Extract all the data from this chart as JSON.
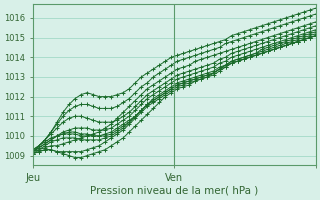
{
  "title": "",
  "xlabel": "Pression niveau de la mer( hPa )",
  "ylabel": "",
  "bg_color": "#d8f0e8",
  "plot_bg_color": "#d8f0e8",
  "grid_color": "#aaddcc",
  "line_color": "#1a6b2a",
  "axis_color": "#5a9a6a",
  "ylim": [
    1008.5,
    1016.7
  ],
  "xlim": [
    0,
    48
  ],
  "yticks": [
    1009,
    1010,
    1011,
    1012,
    1013,
    1014,
    1015,
    1016
  ],
  "xticks": [
    0,
    24,
    48
  ],
  "xticklabels": [
    "Jeu",
    "Ven",
    ""
  ],
  "vline_x": 24,
  "series": [
    [
      1009.2,
      1009.3,
      1009.4,
      1009.5,
      1009.5,
      1009.6,
      1009.7,
      1009.8,
      1009.9,
      1010.0,
      1010.1,
      1010.2,
      1010.4,
      1010.6,
      1010.9,
      1011.2,
      1011.5,
      1011.8,
      1012.1,
      1012.4,
      1012.6,
      1012.8,
      1013.0,
      1013.2,
      1013.4,
      1013.5,
      1013.6,
      1013.8,
      1013.9,
      1014.0,
      1014.1,
      1014.2,
      1014.3,
      1014.4,
      1014.5,
      1014.6,
      1014.7,
      1014.8,
      1014.9,
      1015.0,
      1015.1,
      1015.2,
      1015.3,
      1015.4,
      1015.5,
      1015.6,
      1015.7,
      1015.8
    ],
    [
      1009.1,
      1009.2,
      1009.3,
      1009.3,
      1009.2,
      1009.1,
      1009.0,
      1008.9,
      1008.9,
      1009.0,
      1009.1,
      1009.2,
      1009.3,
      1009.5,
      1009.7,
      1009.9,
      1010.2,
      1010.5,
      1010.8,
      1011.1,
      1011.4,
      1011.7,
      1012.0,
      1012.2,
      1012.4,
      1012.5,
      1012.6,
      1012.8,
      1012.9,
      1013.0,
      1013.2,
      1013.4,
      1013.6,
      1013.8,
      1013.9,
      1014.0,
      1014.1,
      1014.2,
      1014.3,
      1014.4,
      1014.5,
      1014.6,
      1014.7,
      1014.8,
      1014.9,
      1015.0,
      1015.1,
      1015.2
    ],
    [
      1009.3,
      1009.5,
      1009.7,
      1009.9,
      1010.0,
      1010.1,
      1010.1,
      1010.1,
      1010.0,
      1010.0,
      1010.0,
      1010.0,
      1010.1,
      1010.2,
      1010.4,
      1010.6,
      1010.8,
      1011.0,
      1011.3,
      1011.6,
      1011.9,
      1012.1,
      1012.3,
      1012.5,
      1012.7,
      1012.8,
      1012.9,
      1013.0,
      1013.1,
      1013.2,
      1013.3,
      1013.5,
      1013.6,
      1013.8,
      1013.9,
      1014.0,
      1014.1,
      1014.2,
      1014.4,
      1014.5,
      1014.6,
      1014.7,
      1014.8,
      1014.9,
      1015.0,
      1015.1,
      1015.2,
      1015.3
    ],
    [
      1009.1,
      1009.2,
      1009.3,
      1009.3,
      1009.2,
      1009.2,
      1009.2,
      1009.2,
      1009.2,
      1009.3,
      1009.4,
      1009.5,
      1009.7,
      1009.9,
      1010.1,
      1010.3,
      1010.6,
      1010.9,
      1011.2,
      1011.5,
      1011.7,
      1011.9,
      1012.1,
      1012.3,
      1012.5,
      1012.6,
      1012.7,
      1012.8,
      1012.9,
      1013.0,
      1013.1,
      1013.3,
      1013.5,
      1013.7,
      1013.8,
      1013.9,
      1014.0,
      1014.1,
      1014.2,
      1014.3,
      1014.4,
      1014.5,
      1014.6,
      1014.7,
      1014.8,
      1014.9,
      1015.0,
      1015.1
    ],
    [
      1009.2,
      1009.4,
      1009.6,
      1009.8,
      1010.0,
      1010.1,
      1010.2,
      1010.2,
      1010.1,
      1010.1,
      1010.0,
      1010.0,
      1010.0,
      1010.1,
      1010.3,
      1010.5,
      1010.7,
      1011.0,
      1011.3,
      1011.6,
      1011.8,
      1012.0,
      1012.2,
      1012.4,
      1012.6,
      1012.7,
      1012.8,
      1012.9,
      1013.0,
      1013.1,
      1013.2,
      1013.4,
      1013.6,
      1013.7,
      1013.8,
      1013.9,
      1014.0,
      1014.1,
      1014.2,
      1014.3,
      1014.4,
      1014.5,
      1014.6,
      1014.7,
      1014.8,
      1014.9,
      1015.0,
      1015.1
    ],
    [
      1009.2,
      1009.4,
      1009.6,
      1009.8,
      1010.0,
      1010.2,
      1010.3,
      1010.4,
      1010.4,
      1010.4,
      1010.3,
      1010.3,
      1010.3,
      1010.4,
      1010.6,
      1010.8,
      1011.0,
      1011.3,
      1011.6,
      1011.9,
      1012.1,
      1012.3,
      1012.5,
      1012.7,
      1012.9,
      1013.0,
      1013.1,
      1013.2,
      1013.3,
      1013.4,
      1013.5,
      1013.7,
      1013.8,
      1014.0,
      1014.1,
      1014.2,
      1014.3,
      1014.4,
      1014.5,
      1014.6,
      1014.7,
      1014.8,
      1014.9,
      1015.0,
      1015.1,
      1015.2,
      1015.3,
      1015.4
    ],
    [
      1009.1,
      1009.3,
      1009.5,
      1009.7,
      1009.8,
      1009.9,
      1009.9,
      1009.9,
      1009.8,
      1009.8,
      1009.8,
      1009.8,
      1009.9,
      1010.0,
      1010.2,
      1010.4,
      1010.7,
      1011.0,
      1011.3,
      1011.6,
      1011.8,
      1012.0,
      1012.2,
      1012.4,
      1012.6,
      1012.7,
      1012.8,
      1012.9,
      1013.0,
      1013.1,
      1013.2,
      1013.4,
      1013.5,
      1013.7,
      1013.8,
      1013.9,
      1014.0,
      1014.1,
      1014.2,
      1014.3,
      1014.4,
      1014.5,
      1014.6,
      1014.7,
      1014.8,
      1014.9,
      1015.0,
      1015.1
    ],
    [
      1009.3,
      1009.5,
      1009.8,
      1010.1,
      1010.4,
      1010.7,
      1010.9,
      1011.0,
      1011.0,
      1010.9,
      1010.8,
      1010.7,
      1010.7,
      1010.7,
      1010.8,
      1011.0,
      1011.2,
      1011.5,
      1011.8,
      1012.1,
      1012.3,
      1012.5,
      1012.7,
      1012.9,
      1013.1,
      1013.2,
      1013.3,
      1013.4,
      1013.5,
      1013.6,
      1013.7,
      1013.9,
      1014.0,
      1014.2,
      1014.3,
      1014.4,
      1014.5,
      1014.6,
      1014.7,
      1014.8,
      1014.9,
      1015.0,
      1015.1,
      1015.2,
      1015.3,
      1015.4,
      1015.5,
      1015.6
    ],
    [
      1009.2,
      1009.5,
      1009.8,
      1010.2,
      1010.6,
      1011.0,
      1011.3,
      1011.5,
      1011.6,
      1011.6,
      1011.5,
      1011.4,
      1011.4,
      1011.4,
      1011.5,
      1011.7,
      1011.9,
      1012.2,
      1012.5,
      1012.7,
      1013.0,
      1013.2,
      1013.4,
      1013.6,
      1013.8,
      1013.9,
      1014.0,
      1014.1,
      1014.2,
      1014.3,
      1014.4,
      1014.5,
      1014.7,
      1014.8,
      1014.9,
      1015.0,
      1015.1,
      1015.2,
      1015.3,
      1015.4,
      1015.5,
      1015.6,
      1015.7,
      1015.8,
      1015.9,
      1016.0,
      1016.1,
      1016.2
    ],
    [
      1009.2,
      1009.5,
      1009.8,
      1010.2,
      1010.7,
      1011.2,
      1011.6,
      1011.9,
      1012.1,
      1012.2,
      1012.1,
      1012.0,
      1012.0,
      1012.0,
      1012.1,
      1012.2,
      1012.4,
      1012.7,
      1013.0,
      1013.2,
      1013.4,
      1013.6,
      1013.8,
      1014.0,
      1014.1,
      1014.2,
      1014.3,
      1014.4,
      1014.5,
      1014.6,
      1014.7,
      1014.8,
      1014.9,
      1015.1,
      1015.2,
      1015.3,
      1015.4,
      1015.5,
      1015.6,
      1015.7,
      1015.8,
      1015.9,
      1016.0,
      1016.1,
      1016.2,
      1016.3,
      1016.4,
      1016.5
    ]
  ]
}
